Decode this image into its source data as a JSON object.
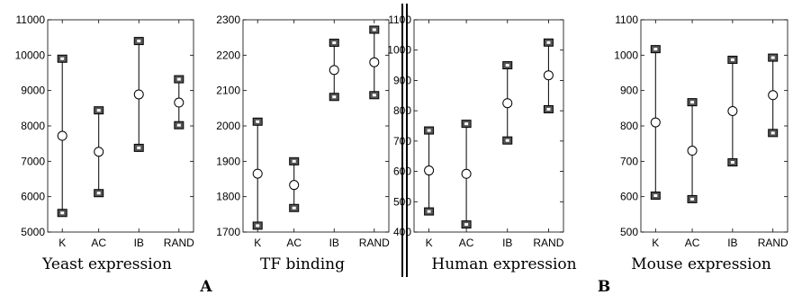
{
  "chart_data": [
    {
      "type": "errorbar",
      "panel": "A",
      "title": "Yeast expression",
      "categories": [
        "K",
        "AC",
        "IB",
        "RAND"
      ],
      "ylim": [
        5000,
        11000
      ],
      "yticks": [
        5000,
        6000,
        7000,
        8000,
        9000,
        10000,
        11000
      ],
      "mean": [
        7720,
        7270,
        8890,
        8660
      ],
      "lower": [
        5540,
        6100,
        7380,
        8020
      ],
      "upper": [
        9900,
        8440,
        10400,
        9320
      ]
    },
    {
      "type": "errorbar",
      "panel": "A",
      "title": "TF binding",
      "categories": [
        "K",
        "AC",
        "IB",
        "RAND"
      ],
      "ylim": [
        1700,
        2300
      ],
      "yticks": [
        1700,
        1800,
        1900,
        2000,
        2100,
        2200,
        2300
      ],
      "mean": [
        1865,
        1833,
        2158,
        2180
      ],
      "lower": [
        1718,
        1768,
        2082,
        2087
      ],
      "upper": [
        2012,
        1900,
        2235,
        2272
      ]
    },
    {
      "type": "errorbar",
      "panel": "B",
      "title": "Human expression",
      "categories": [
        "K",
        "AC",
        "IB",
        "RAND"
      ],
      "ylim": [
        400,
        1100
      ],
      "yticks": [
        400,
        500,
        600,
        700,
        800,
        900,
        1000,
        1100
      ],
      "mean": [
        603,
        592,
        825,
        917
      ],
      "lower": [
        468,
        425,
        702,
        805
      ],
      "upper": [
        735,
        757,
        950,
        1025
      ]
    },
    {
      "type": "errorbar",
      "panel": "B",
      "title": "Mouse expression",
      "categories": [
        "K",
        "AC",
        "IB",
        "RAND"
      ],
      "ylim": [
        500,
        1100
      ],
      "yticks": [
        500,
        600,
        700,
        800,
        900,
        1000,
        1100
      ],
      "mean": [
        810,
        730,
        842,
        887
      ],
      "lower": [
        603,
        593,
        697,
        780
      ],
      "upper": [
        1017,
        867,
        987,
        993
      ]
    }
  ],
  "panel_labels": [
    "A",
    "B"
  ]
}
